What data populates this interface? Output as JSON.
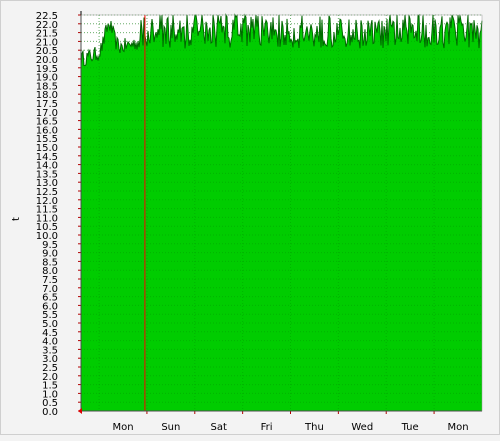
{
  "chart_data": {
    "type": "area",
    "ylabel": "t",
    "ylim": [
      0,
      22.5
    ],
    "y_step": 0.5,
    "x_ticks": [
      "Mon",
      "Sun",
      "Sat",
      "Fri",
      "Thu",
      "Wed",
      "Tue",
      "Mon"
    ],
    "grid": true,
    "series": [
      {
        "color": "#00cc00",
        "line_color": "#006600",
        "mean": 21.0,
        "band": [
          20.6,
          22.3
        ],
        "early_start": 20.0,
        "early_bump": 21.8
      }
    ],
    "marker_line": {
      "color": "#ff0000",
      "tick_index": 0.5
    }
  },
  "colors": {
    "background": "#f3f3f3",
    "plot_bg": "#ffffff",
    "grid": "#c8c8c8",
    "grid_major": "#b00000",
    "fill": "#00cc00",
    "line": "#006600",
    "marker": "#ff0000"
  }
}
